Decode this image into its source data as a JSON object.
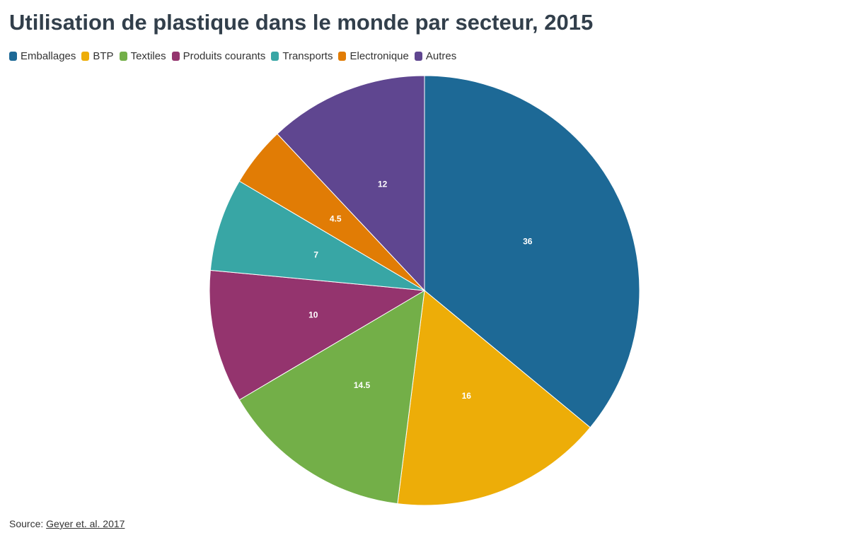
{
  "chart_data": {
    "type": "pie",
    "title": "Utilisation de plastique dans le monde par secteur, 2015",
    "legend_position": "top-left",
    "slices": [
      {
        "label": "Emballages",
        "value": 36,
        "value_label": "36",
        "color": "#1d6996"
      },
      {
        "label": "BTP",
        "value": 16,
        "value_label": "16",
        "color": "#edad08"
      },
      {
        "label": "Textiles",
        "value": 14.5,
        "value_label": "14.5",
        "color": "#73af48"
      },
      {
        "label": "Produits courants",
        "value": 10,
        "value_label": "10",
        "color": "#94346e"
      },
      {
        "label": "Transports",
        "value": 7,
        "value_label": "7",
        "color": "#38a6a5"
      },
      {
        "label": "Electronique",
        "value": 4.5,
        "value_label": "4.5",
        "color": "#e17c05"
      },
      {
        "label": "Autres",
        "value": 12,
        "value_label": "12",
        "color": "#5f4690"
      }
    ]
  },
  "source": {
    "prefix": "Source: ",
    "link_text": "Geyer et. al. 2017"
  }
}
